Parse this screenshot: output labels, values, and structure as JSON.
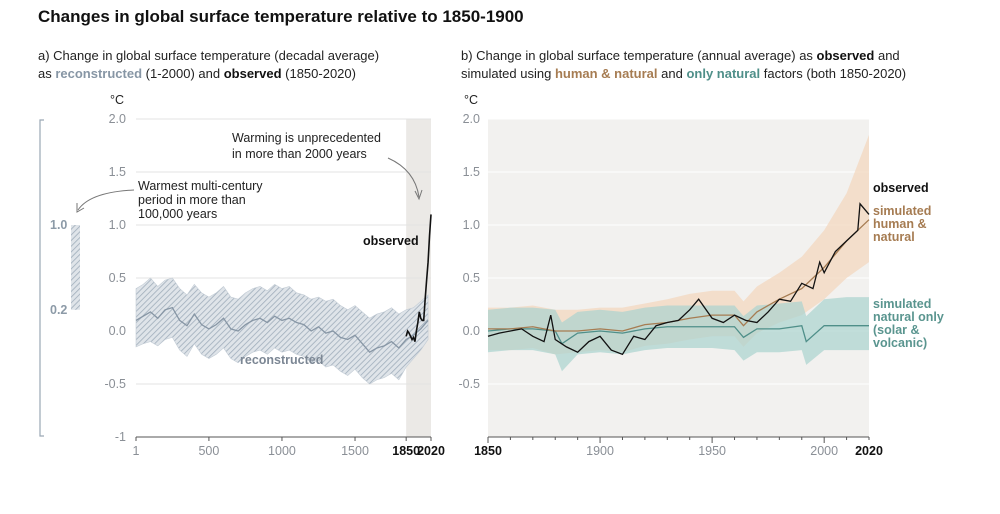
{
  "title": "Changes in global surface temperature relative to 1850-1900",
  "panel_a": {
    "subtitle_l1": "a) Change in global surface temperature (decadal average)",
    "subtitle_l2": [
      {
        "text": "as ",
        "style": "normal"
      },
      {
        "text": "reconstructed",
        "style": "recon"
      },
      {
        "text": " (1-2000) and ",
        "style": "normal"
      },
      {
        "text": "observed",
        "style": "bold"
      },
      {
        "text": " (1850-2020)",
        "style": "normal"
      }
    ],
    "unit": "°C",
    "annotation_warming": [
      "Warming is unprecedented",
      "in more than 2000 years"
    ],
    "annotation_warmest": [
      "Warmest multi-century",
      "period in more than",
      "100,000 years"
    ],
    "label_observed": "observed",
    "label_reconstructed": "reconstructed",
    "side_bar": {
      "upper_label": "1.0",
      "lower_label": "0.2",
      "upper": 1.0,
      "lower": 0.2
    }
  },
  "panel_b": {
    "subtitle_l1": [
      {
        "text": "b) Change in global surface temperature (annual average) as ",
        "style": "normal"
      },
      {
        "text": "observed",
        "style": "bold"
      },
      {
        "text": " and",
        "style": "normal"
      }
    ],
    "subtitle_l2": [
      {
        "text": "simulated using ",
        "style": "normal"
      },
      {
        "text": "human & natural",
        "style": "human"
      },
      {
        "text": " and ",
        "style": "normal"
      },
      {
        "text": "only natural",
        "style": "natural"
      },
      {
        "text": " factors (both 1850-2020)",
        "style": "normal"
      }
    ],
    "unit": "°C",
    "label_observed": "observed",
    "label_human": [
      "simulated",
      "human &",
      "natural"
    ],
    "label_natural": [
      "simulated",
      "natural only",
      "(solar &",
      "volcanic)"
    ]
  },
  "colors": {
    "reconstructed": "#8796a5",
    "reconstructed_band": "#c3ccd5",
    "observed": "#111111",
    "human_natural": "#a67c52",
    "human_natural_band": "#f3d7bf",
    "natural_only": "#4f8f89",
    "natural_only_band": "#a9d3cf",
    "panel_bg": "#f2f1ef",
    "highlight_band": "#ebe9e6"
  },
  "chart_data": [
    {
      "type": "line",
      "ylim": [
        -1,
        2
      ],
      "xlim": [
        1,
        2020
      ],
      "yticks": [
        -1,
        -0.5,
        0.0,
        0.5,
        1.0,
        1.5,
        2.0
      ],
      "ytick_labels": [
        "-1",
        "-0.5",
        "0.0",
        "0.5",
        "1.0",
        "1.5",
        "2.0"
      ],
      "xticks": [
        1,
        500,
        1000,
        1500,
        1850,
        2020
      ],
      "xtick_labels": [
        "1",
        "500",
        "1000",
        "1500",
        "1850",
        "2020"
      ],
      "xtick_bold": [
        false,
        false,
        false,
        false,
        true,
        true
      ],
      "highlight_span": [
        1850,
        2020
      ],
      "series": [
        {
          "name": "reconstructed",
          "x": [
            1,
            50,
            100,
            150,
            200,
            250,
            300,
            350,
            400,
            450,
            500,
            550,
            600,
            650,
            700,
            750,
            800,
            850,
            900,
            950,
            1000,
            1050,
            1100,
            1150,
            1200,
            1250,
            1300,
            1350,
            1400,
            1450,
            1500,
            1550,
            1600,
            1650,
            1700,
            1750,
            1800,
            1850,
            1900,
            1950,
            2000
          ],
          "values": [
            0.1,
            0.14,
            0.18,
            0.12,
            0.2,
            0.22,
            0.1,
            0.05,
            0.16,
            0.06,
            0.02,
            0.06,
            0.12,
            0.02,
            0.0,
            0.06,
            0.1,
            0.12,
            0.08,
            0.14,
            0.1,
            0.12,
            0.08,
            0.06,
            0.0,
            0.04,
            -0.02,
            0.0,
            -0.06,
            -0.08,
            -0.04,
            -0.12,
            -0.2,
            -0.16,
            -0.14,
            -0.1,
            -0.16,
            -0.08,
            -0.04,
            0.02,
            0.1
          ],
          "lower": [
            -0.15,
            -0.12,
            -0.1,
            -0.14,
            -0.08,
            -0.06,
            -0.18,
            -0.24,
            -0.12,
            -0.22,
            -0.26,
            -0.22,
            -0.16,
            -0.26,
            -0.3,
            -0.24,
            -0.2,
            -0.18,
            -0.22,
            -0.16,
            -0.2,
            -0.18,
            -0.22,
            -0.24,
            -0.3,
            -0.28,
            -0.34,
            -0.32,
            -0.38,
            -0.42,
            -0.36,
            -0.44,
            -0.5,
            -0.46,
            -0.44,
            -0.4,
            -0.46,
            -0.34,
            -0.26,
            -0.18,
            -0.08
          ],
          "upper": [
            0.4,
            0.44,
            0.5,
            0.42,
            0.48,
            0.5,
            0.4,
            0.34,
            0.44,
            0.36,
            0.32,
            0.36,
            0.42,
            0.32,
            0.3,
            0.36,
            0.4,
            0.42,
            0.38,
            0.44,
            0.4,
            0.42,
            0.36,
            0.34,
            0.3,
            0.32,
            0.28,
            0.3,
            0.24,
            0.2,
            0.24,
            0.18,
            0.12,
            0.16,
            0.18,
            0.22,
            0.16,
            0.2,
            0.22,
            0.28,
            0.34
          ]
        },
        {
          "name": "observed",
          "x": [
            1850,
            1860,
            1870,
            1880,
            1890,
            1900,
            1910,
            1920,
            1930,
            1940,
            1950,
            1960,
            1970,
            1980,
            1990,
            2000,
            2010,
            2020
          ],
          "values": [
            -0.05,
            0.0,
            -0.02,
            -0.05,
            -0.08,
            -0.06,
            -0.1,
            0.0,
            0.08,
            0.18,
            0.12,
            0.1,
            0.1,
            0.3,
            0.48,
            0.65,
            0.9,
            1.1
          ]
        }
      ]
    },
    {
      "type": "line",
      "ylim": [
        -1,
        2
      ],
      "xlim": [
        1850,
        2020
      ],
      "yticks": [
        -0.5,
        0.0,
        0.5,
        1.0,
        1.5,
        2.0
      ],
      "ytick_labels": [
        "-0.5",
        "0.0",
        "0.5",
        "1.0",
        "1.5",
        "2.0"
      ],
      "xticks": [
        1850,
        1900,
        1950,
        2000,
        2020
      ],
      "xtick_labels": [
        "1850",
        "1900",
        "1950",
        "2000",
        "2020"
      ],
      "xtick_bold": [
        true,
        false,
        false,
        false,
        true
      ],
      "series": [
        {
          "name": "observed",
          "x": [
            1850,
            1855,
            1860,
            1865,
            1870,
            1875,
            1878,
            1880,
            1885,
            1890,
            1895,
            1900,
            1905,
            1910,
            1915,
            1920,
            1925,
            1930,
            1935,
            1940,
            1944,
            1950,
            1955,
            1960,
            1965,
            1970,
            1975,
            1980,
            1985,
            1990,
            1995,
            1998,
            2000,
            2005,
            2010,
            2015,
            2016,
            2020
          ],
          "values": [
            -0.05,
            -0.02,
            0.0,
            0.02,
            -0.05,
            -0.1,
            0.15,
            -0.08,
            -0.15,
            -0.2,
            -0.1,
            -0.05,
            -0.18,
            -0.22,
            -0.05,
            -0.08,
            0.05,
            0.08,
            0.1,
            0.2,
            0.3,
            0.12,
            0.08,
            0.15,
            0.1,
            0.08,
            0.18,
            0.3,
            0.28,
            0.45,
            0.4,
            0.65,
            0.55,
            0.75,
            0.85,
            0.95,
            1.2,
            1.1
          ]
        },
        {
          "name": "simulated human & natural",
          "x": [
            1850,
            1860,
            1870,
            1880,
            1890,
            1900,
            1910,
            1920,
            1930,
            1940,
            1950,
            1960,
            1964,
            1970,
            1980,
            1990,
            2000,
            2010,
            2020
          ],
          "values": [
            0.02,
            0.02,
            0.04,
            0.0,
            0.0,
            0.02,
            0.0,
            0.06,
            0.08,
            0.12,
            0.15,
            0.15,
            0.05,
            0.18,
            0.3,
            0.4,
            0.6,
            0.85,
            1.05
          ],
          "lower": [
            -0.18,
            -0.18,
            -0.16,
            -0.22,
            -0.2,
            -0.18,
            -0.2,
            -0.14,
            -0.12,
            -0.08,
            -0.05,
            -0.05,
            -0.15,
            -0.02,
            0.08,
            0.15,
            0.3,
            0.5,
            0.65
          ],
          "upper": [
            0.22,
            0.22,
            0.24,
            0.2,
            0.2,
            0.22,
            0.22,
            0.26,
            0.3,
            0.35,
            0.38,
            0.38,
            0.28,
            0.42,
            0.55,
            0.7,
            0.95,
            1.3,
            1.85
          ]
        },
        {
          "name": "simulated natural only (solar & volcanic)",
          "x": [
            1850,
            1860,
            1870,
            1880,
            1883,
            1890,
            1900,
            1910,
            1920,
            1930,
            1940,
            1950,
            1960,
            1964,
            1970,
            1980,
            1990,
            1992,
            2000,
            2010,
            2020
          ],
          "values": [
            0.0,
            0.02,
            0.02,
            0.0,
            -0.12,
            -0.02,
            0.0,
            -0.02,
            0.02,
            0.04,
            0.04,
            0.04,
            0.04,
            -0.06,
            0.02,
            0.02,
            0.05,
            -0.1,
            0.05,
            0.05,
            0.05
          ],
          "lower": [
            -0.2,
            -0.18,
            -0.18,
            -0.22,
            -0.38,
            -0.22,
            -0.2,
            -0.22,
            -0.18,
            -0.16,
            -0.16,
            -0.16,
            -0.18,
            -0.28,
            -0.2,
            -0.2,
            -0.18,
            -0.32,
            -0.18,
            -0.18,
            -0.18
          ],
          "upper": [
            0.2,
            0.22,
            0.22,
            0.2,
            0.08,
            0.18,
            0.2,
            0.18,
            0.22,
            0.24,
            0.24,
            0.24,
            0.24,
            0.14,
            0.24,
            0.26,
            0.28,
            0.14,
            0.3,
            0.32,
            0.32
          ]
        }
      ]
    }
  ]
}
